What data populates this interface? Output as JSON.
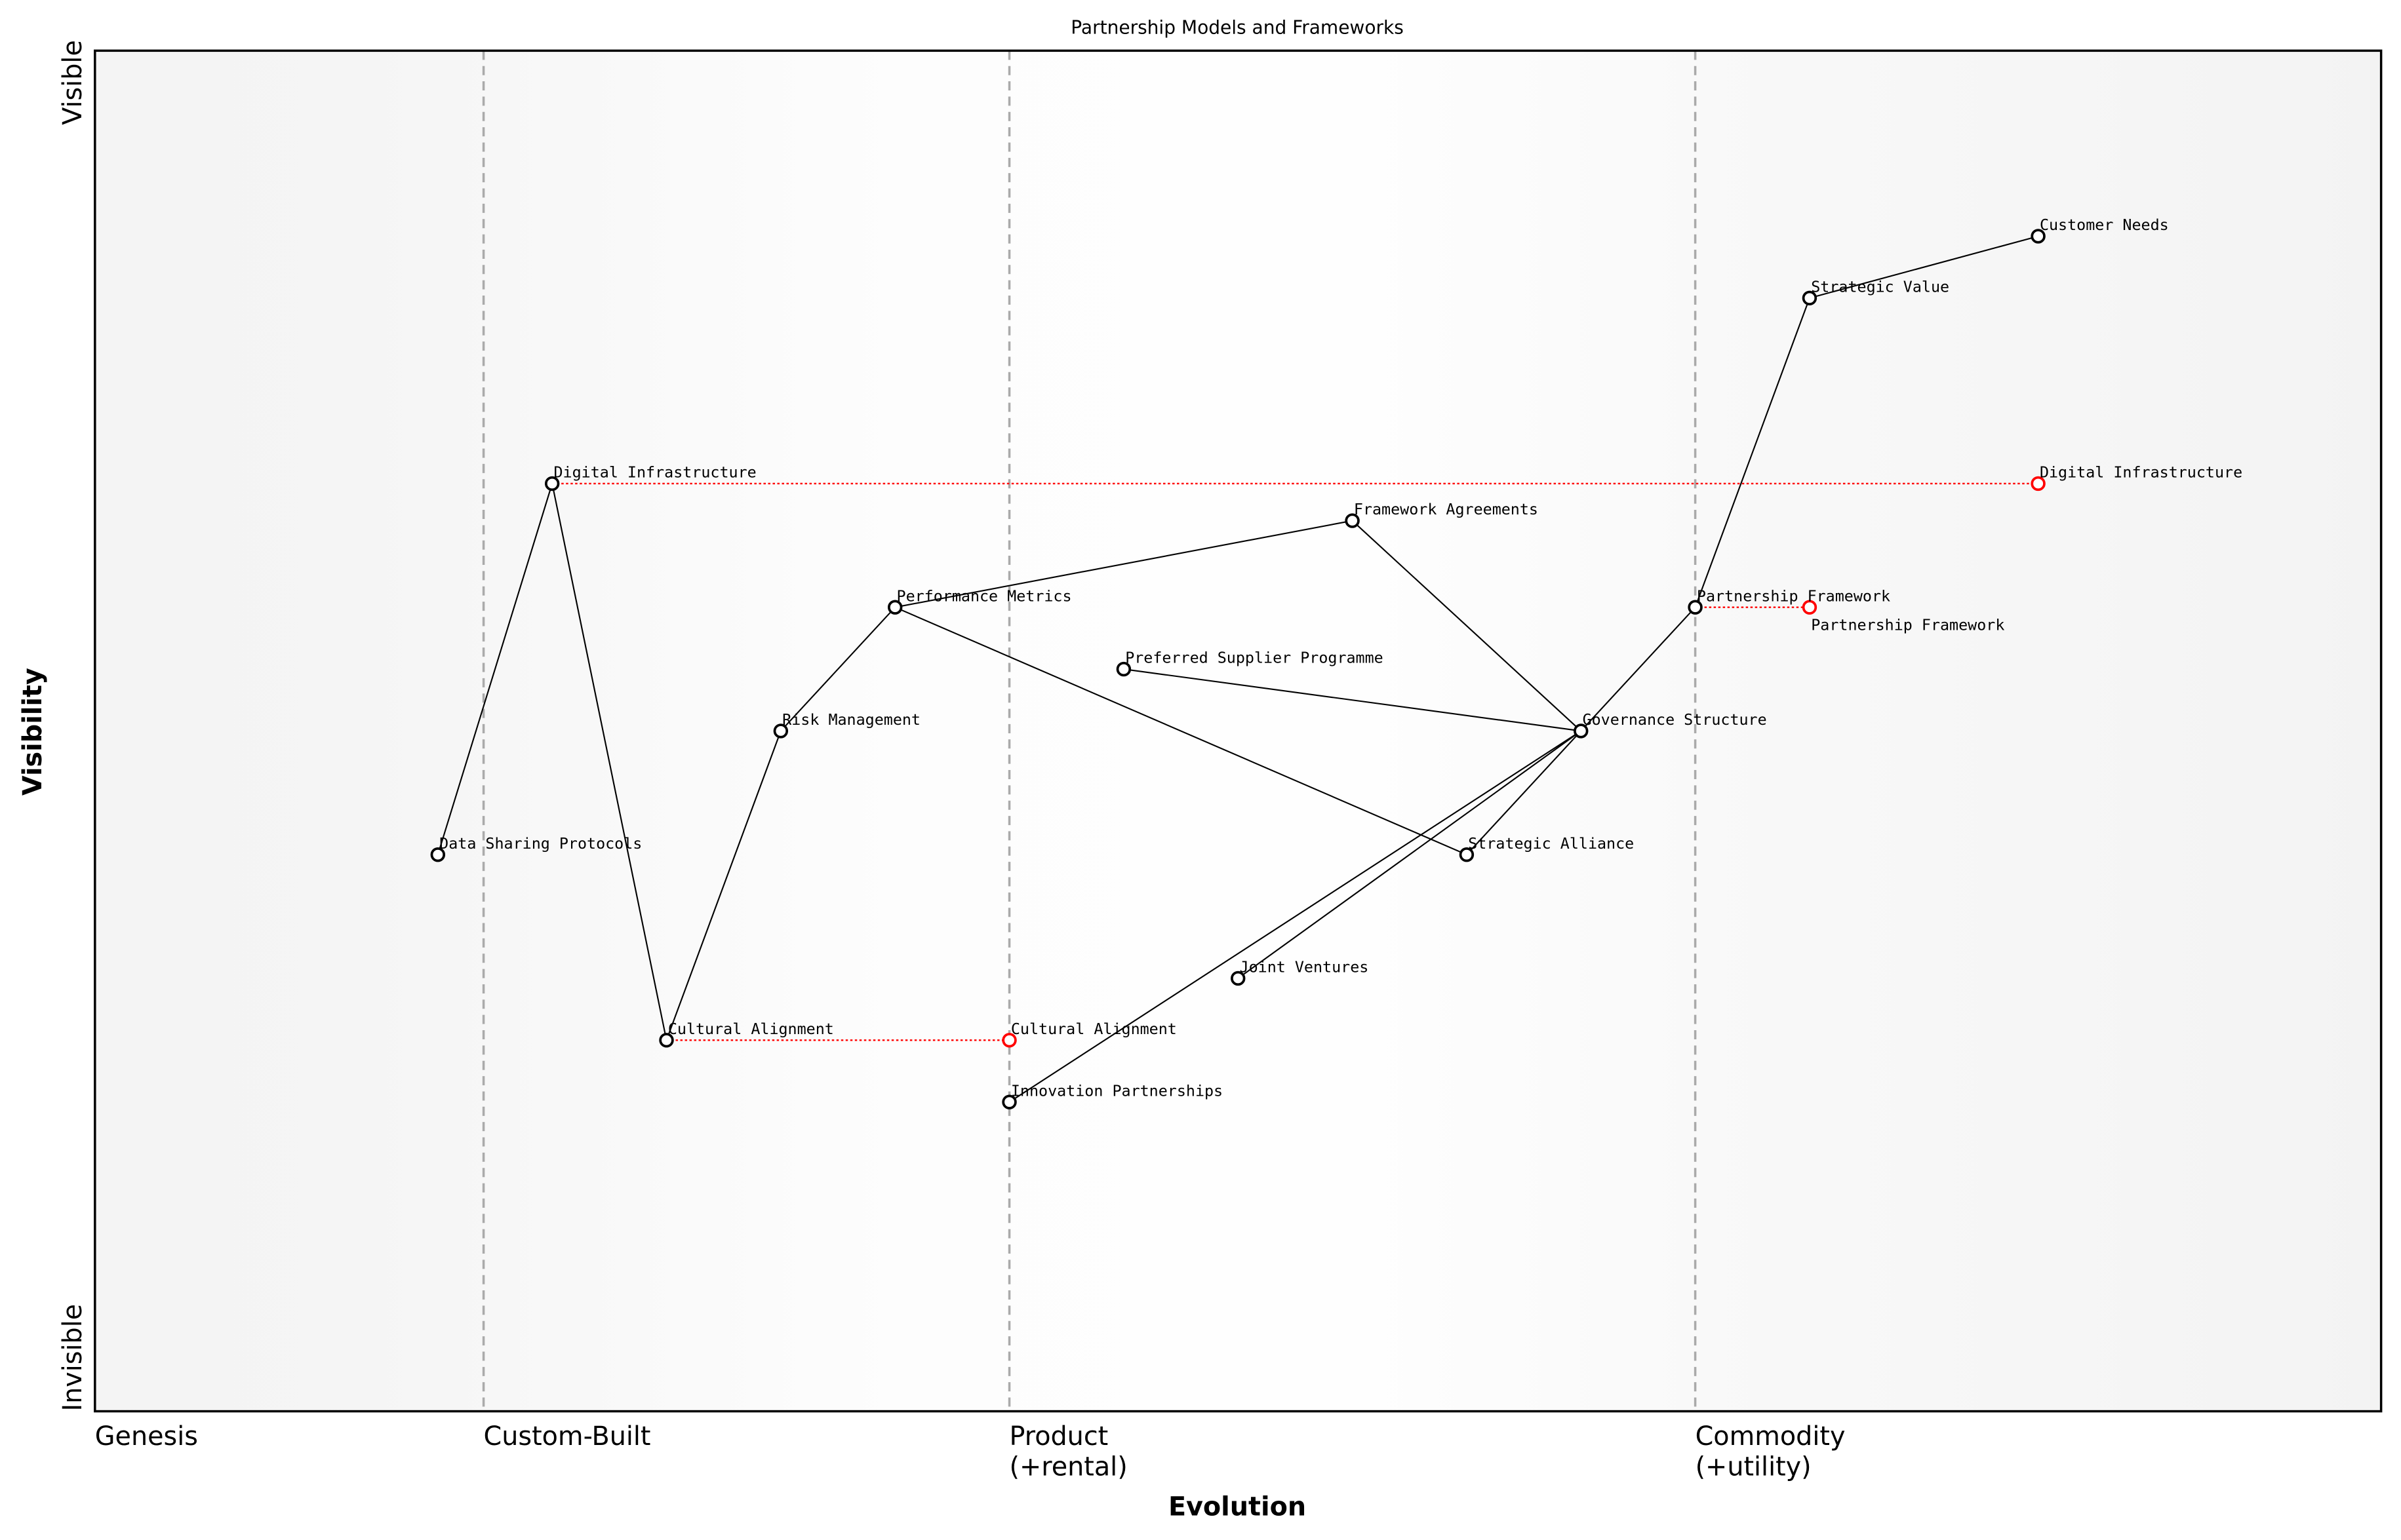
{
  "chart_data": {
    "type": "wardley-map",
    "title": "Partnership Models and Frameworks",
    "xlabel": "Evolution",
    "ylabel": "Visibility",
    "xlim": [
      0,
      1
    ],
    "ylim": [
      0,
      1.1
    ],
    "y_ticks": [
      {
        "label": "Invisible",
        "value": 0
      },
      {
        "label": "Visible",
        "value": 1
      }
    ],
    "stages": [
      {
        "label": "Genesis",
        "value": 0
      },
      {
        "label": "Custom-Built",
        "value": 0.17
      },
      {
        "label": "Product\n(+rental)",
        "value": 0.4
      },
      {
        "label": "Commodity\n(+utility)",
        "value": 0.7
      }
    ],
    "colors": {
      "component": "#000000",
      "evolution": "#ff0000",
      "stage_line": "#aaaaaa",
      "edge_background": "#f4f4f4"
    },
    "components": [
      {
        "name": "Customer Needs",
        "x": 0.85,
        "y": 0.95
      },
      {
        "name": "Strategic Value",
        "x": 0.75,
        "y": 0.9
      },
      {
        "name": "Digital Infrastructure",
        "x": 0.2,
        "y": 0.75
      },
      {
        "name": "Framework Agreements",
        "x": 0.55,
        "y": 0.72
      },
      {
        "name": "Performance Metrics",
        "x": 0.35,
        "y": 0.65
      },
      {
        "name": "Partnership Framework",
        "x": 0.7,
        "y": 0.65
      },
      {
        "name": "Preferred Supplier Programme",
        "x": 0.45,
        "y": 0.6
      },
      {
        "name": "Risk Management",
        "x": 0.3,
        "y": 0.55
      },
      {
        "name": "Governance Structure",
        "x": 0.65,
        "y": 0.55
      },
      {
        "name": "Data Sharing Protocols",
        "x": 0.15,
        "y": 0.45
      },
      {
        "name": "Strategic Alliance",
        "x": 0.6,
        "y": 0.45
      },
      {
        "name": "Joint Ventures",
        "x": 0.5,
        "y": 0.35
      },
      {
        "name": "Cultural Alignment",
        "x": 0.25,
        "y": 0.3
      },
      {
        "name": "Innovation Partnerships",
        "x": 0.4,
        "y": 0.25
      }
    ],
    "links": [
      [
        "Customer Needs",
        "Strategic Value"
      ],
      [
        "Strategic Value",
        "Partnership Framework"
      ],
      [
        "Partnership Framework",
        "Governance Structure"
      ],
      [
        "Framework Agreements",
        "Governance Structure"
      ],
      [
        "Preferred Supplier Programme",
        "Governance Structure"
      ],
      [
        "Governance Structure",
        "Strategic Alliance"
      ],
      [
        "Governance Structure",
        "Joint Ventures"
      ],
      [
        "Governance Structure",
        "Innovation Partnerships"
      ],
      [
        "Performance Metrics",
        "Framework Agreements"
      ],
      [
        "Performance Metrics",
        "Strategic Alliance"
      ],
      [
        "Risk Management",
        "Performance Metrics"
      ],
      [
        "Cultural Alignment",
        "Risk Management"
      ],
      [
        "Digital Infrastructure",
        "Cultural Alignment"
      ],
      [
        "Data Sharing Protocols",
        "Digital Infrastructure"
      ]
    ],
    "evolutions": [
      {
        "name": "Digital Infrastructure",
        "from": 0.2,
        "to": 0.85,
        "y": 0.75
      },
      {
        "name": "Partnership Framework",
        "from": 0.7,
        "to": 0.75,
        "y": 0.65
      },
      {
        "name": "Cultural Alignment",
        "from": 0.25,
        "to": 0.4,
        "y": 0.3
      }
    ]
  }
}
